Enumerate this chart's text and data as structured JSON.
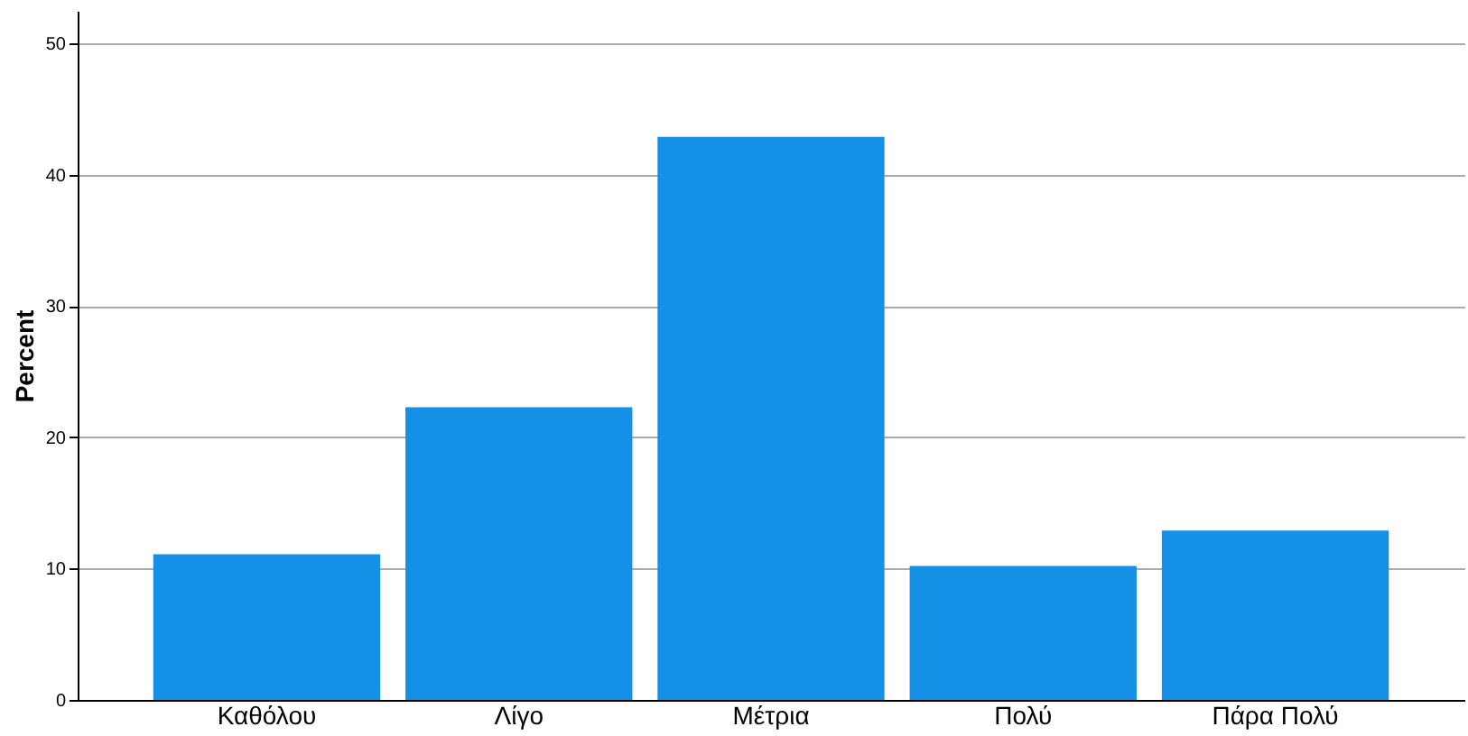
{
  "chart_data": {
    "type": "bar",
    "ylabel": "Percent",
    "categories": [
      "Καθόλου",
      "Λίγο",
      "Μέτρια",
      "Πολύ",
      "Πάρα Πολύ"
    ],
    "values": [
      11.1,
      22.3,
      42.9,
      10.2,
      12.9
    ],
    "color": "#1490e6",
    "ylim": [
      0,
      52.5
    ],
    "yticks": [
      0,
      10,
      20,
      30,
      40,
      50
    ],
    "grid": "y",
    "legend": false
  }
}
